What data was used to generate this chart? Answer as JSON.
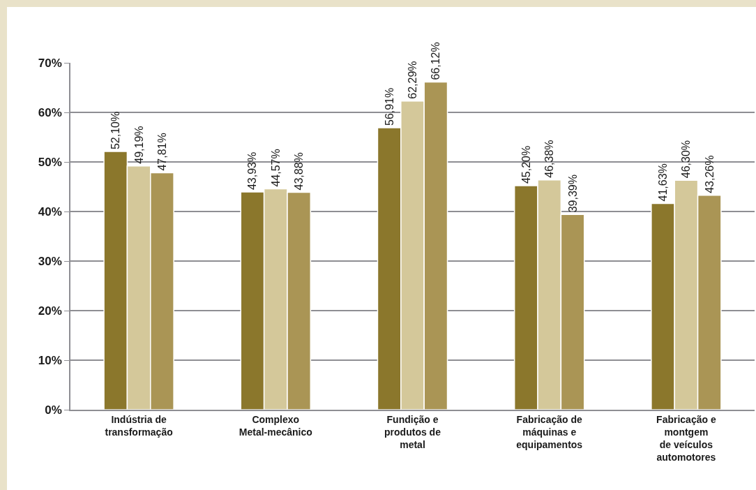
{
  "chart_data": {
    "type": "bar",
    "categories": [
      "Indústria de\ntransformação",
      "Complexo\nMetal-mecânico",
      "Fundição e\nprodutos de\nmetal",
      "Fabricação de\nmáquinas e\nequipamentos",
      "Fabricação e\nmontgem\nde veículos\nautomotores"
    ],
    "series": [
      {
        "color": "#8b772c",
        "values": [
          52.1,
          43.93,
          56.91,
          45.2,
          41.63
        ],
        "value_labels": [
          "52,10%",
          "43,93%",
          "56,91%",
          "45,20%",
          "41,63%"
        ]
      },
      {
        "color": "#d4c89a",
        "values": [
          49.19,
          44.57,
          62.29,
          46.38,
          46.3
        ],
        "value_labels": [
          "49,19%",
          "44,57%",
          "62,29%",
          "46,38%",
          "46,30%"
        ]
      },
      {
        "color": "#aa9555",
        "values": [
          47.81,
          43.88,
          66.12,
          39.39,
          43.26
        ],
        "value_labels": [
          "47,81%",
          "43,88%",
          "66,12%",
          "39,39%",
          "43,26%"
        ]
      }
    ],
    "ylim": [
      0,
      70
    ],
    "yticks": [
      {
        "value": 0,
        "label": "0%"
      },
      {
        "value": 10,
        "label": "10%"
      },
      {
        "value": 20,
        "label": "20%"
      },
      {
        "value": 30,
        "label": "30%"
      },
      {
        "value": 40,
        "label": "40%"
      },
      {
        "value": 50,
        "label": "50%"
      },
      {
        "value": 60,
        "label": "60%"
      },
      {
        "value": 70,
        "label": "70%"
      }
    ],
    "grid": "y"
  }
}
